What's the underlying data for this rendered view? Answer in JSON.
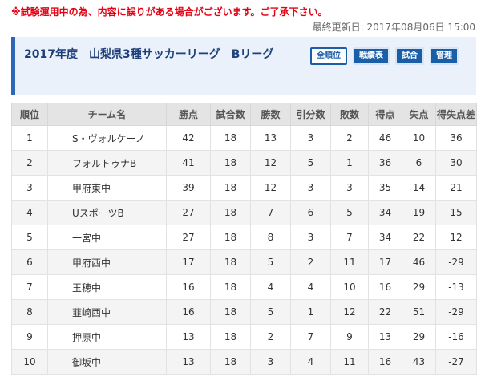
{
  "notice": "※試験運用中の為、内容に誤りがある場合がございます。ご了承下さい。",
  "updated": "最終更新日: 2017年08月06日 15:00",
  "league": {
    "title": "2017年度　山梨県3種サッカーリーグ　Bリーグ"
  },
  "nav": [
    {
      "label": "全順位",
      "active": true
    },
    {
      "label": "戦績表",
      "active": false
    },
    {
      "label": "試合",
      "active": false
    },
    {
      "label": "管理",
      "active": false
    }
  ],
  "colors": {
    "accent": "#2e67b3",
    "button": "#1a5ea8",
    "notice": "#e60012",
    "banner_bg": "#eaf1fa"
  },
  "table": {
    "headers": [
      "順位",
      "チーム名",
      "勝点",
      "試合数",
      "勝数",
      "引分数",
      "敗数",
      "得点",
      "失点",
      "得失点差"
    ],
    "rows": [
      [
        "1",
        "S・ヴォルケーノ",
        "42",
        "18",
        "13",
        "3",
        "2",
        "46",
        "10",
        "36"
      ],
      [
        "2",
        "フォルトゥナB",
        "41",
        "18",
        "12",
        "5",
        "1",
        "36",
        "6",
        "30"
      ],
      [
        "3",
        "甲府東中",
        "39",
        "18",
        "12",
        "3",
        "3",
        "35",
        "14",
        "21"
      ],
      [
        "4",
        "UスポーツB",
        "27",
        "18",
        "7",
        "6",
        "5",
        "34",
        "19",
        "15"
      ],
      [
        "5",
        "一宮中",
        "27",
        "18",
        "8",
        "3",
        "7",
        "34",
        "22",
        "12"
      ],
      [
        "6",
        "甲府西中",
        "17",
        "18",
        "5",
        "2",
        "11",
        "17",
        "46",
        "-29"
      ],
      [
        "7",
        "玉穂中",
        "16",
        "18",
        "4",
        "4",
        "10",
        "16",
        "29",
        "-13"
      ],
      [
        "8",
        "韮崎西中",
        "16",
        "18",
        "5",
        "1",
        "12",
        "22",
        "51",
        "-29"
      ],
      [
        "9",
        "押原中",
        "13",
        "18",
        "2",
        "7",
        "9",
        "13",
        "29",
        "-16"
      ],
      [
        "10",
        "御坂中",
        "13",
        "18",
        "3",
        "4",
        "11",
        "16",
        "43",
        "-27"
      ]
    ]
  }
}
